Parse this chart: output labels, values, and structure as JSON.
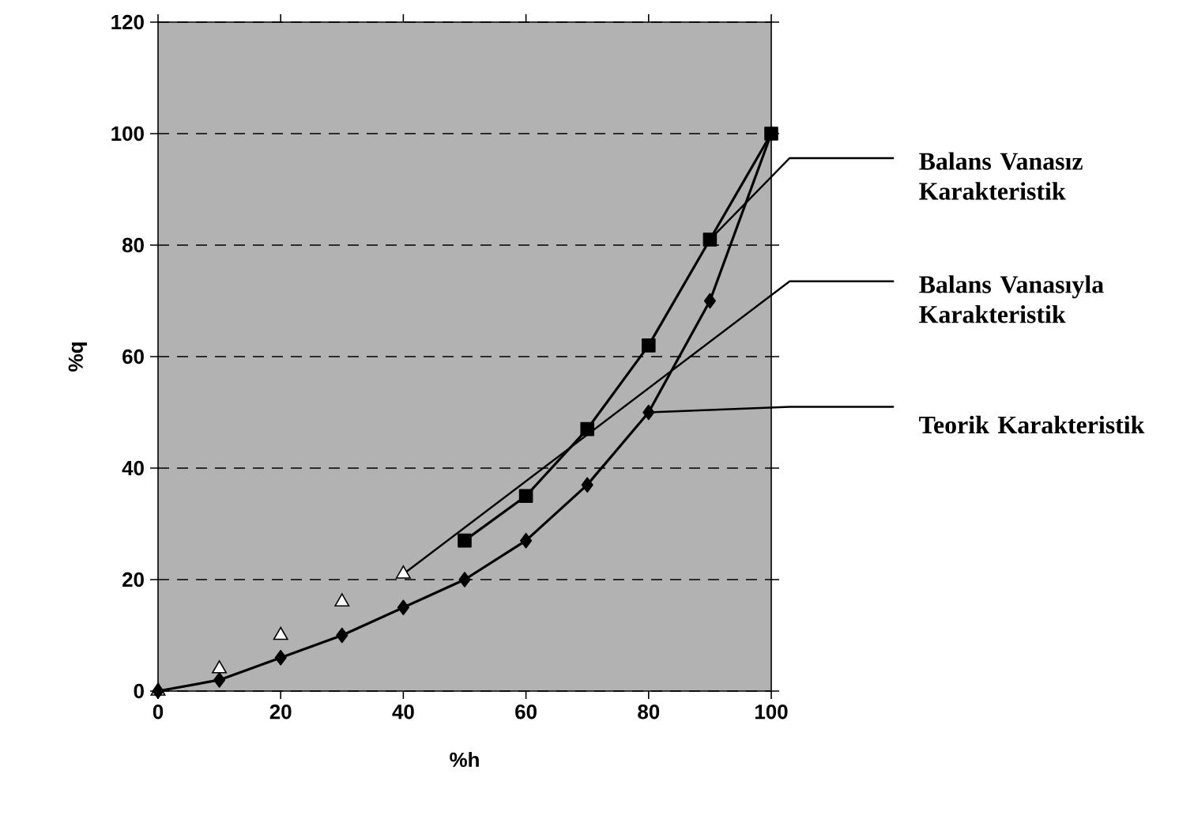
{
  "chart_data": {
    "type": "line",
    "xlabel": "%h",
    "ylabel": "%q",
    "xlim": [
      0,
      100
    ],
    "ylim": [
      0,
      120
    ],
    "xticks": [
      0,
      20,
      40,
      60,
      80,
      100
    ],
    "yticks": [
      0,
      20,
      40,
      60,
      80,
      100,
      120
    ],
    "grid": "y",
    "series": [
      {
        "name": "Balans Vanasız Karakteristik",
        "color": "#000000",
        "marker": "square",
        "x": [
          50,
          60,
          70,
          80,
          90,
          100
        ],
        "values": [
          27,
          35,
          47,
          62,
          81,
          100
        ]
      },
      {
        "name": "Balans Vanasıyla Karakteristik",
        "type": "scatter",
        "color": "#ffffff",
        "marker": "triangle",
        "x": [
          0,
          10,
          20,
          30,
          40
        ],
        "values": [
          0,
          4,
          10,
          16,
          21
        ]
      },
      {
        "name": "Teorik Karakteristik",
        "color": "#000000",
        "marker": "diamond",
        "x": [
          0,
          10,
          20,
          30,
          40,
          50,
          60,
          70,
          80,
          90,
          100
        ],
        "values": [
          0,
          2,
          6,
          10,
          15,
          20,
          27,
          37,
          50,
          70,
          100
        ]
      }
    ]
  }
}
